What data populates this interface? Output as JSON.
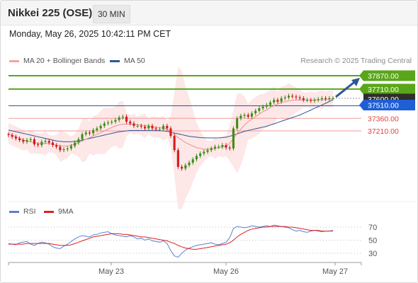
{
  "header": {
    "title": "Nikkei 225 (OSE)",
    "timeframe": "30 MIN"
  },
  "datetime": "Monday, May 26, 2025 10:42:11 PM CET",
  "credit": "Research © 2025 Trading Central",
  "legend": [
    {
      "label": "MA 20 + Bollinger Bands",
      "color": "#f4a3a3"
    },
    {
      "label": "MA 50",
      "color": "#2f5597"
    }
  ],
  "rsi_legend": [
    {
      "label": "RSI",
      "color": "#5b7fd6"
    },
    {
      "label": "9MA",
      "color": "#e02020"
    }
  ],
  "chart_data": [
    {
      "type": "candlestick",
      "x_ticks": [
        "May 23",
        "May 26",
        "May 27"
      ],
      "ylim": [
        36900,
        38000
      ],
      "levels": [
        {
          "value": 37870,
          "label": "37870.00",
          "kind": "resistance",
          "color": "#5aa61a"
        },
        {
          "value": 37710,
          "label": "37710.00",
          "kind": "resistance",
          "color": "#5aa61a"
        },
        {
          "value": 37600,
          "label": "37600.00",
          "kind": "last",
          "color": "#2a2a2a"
        },
        {
          "value": 37510,
          "label": "37510.00",
          "kind": "pivot",
          "color": "#1f5fd6"
        },
        {
          "value": 37360,
          "label": "37360.00",
          "kind": "support",
          "color": "#e04040"
        },
        {
          "value": 37210,
          "label": "37210.00",
          "kind": "support",
          "color": "#e04040"
        }
      ],
      "close": [
        37160,
        37140,
        37120,
        37100,
        37080,
        37100,
        37110,
        37050,
        37040,
        37080,
        37090,
        37070,
        37040,
        37020,
        36980,
        36990,
        37000,
        37030,
        37070,
        37110,
        37170,
        37190,
        37180,
        37220,
        37240,
        37270,
        37300,
        37310,
        37320,
        37340,
        37370,
        37380,
        37320,
        37300,
        37270,
        37270,
        37260,
        37240,
        37270,
        37240,
        37230,
        37230,
        37270,
        37240,
        37150,
        36980,
        36780,
        36760,
        36800,
        36830,
        36870,
        36910,
        36940,
        36960,
        36980,
        37000,
        37020,
        37020,
        37040,
        37010,
        37000,
        37240,
        37360,
        37390,
        37400,
        37380,
        37420,
        37450,
        37480,
        37500,
        37520,
        37550,
        37580,
        37560,
        37600,
        37610,
        37630,
        37620,
        37610,
        37600,
        37580,
        37580,
        37570,
        37580,
        37590,
        37600,
        37590,
        37600,
        37600
      ],
      "ma20": [
        37180,
        37160,
        37140,
        37120,
        37100,
        37090,
        37080,
        37070,
        37060,
        37060,
        37060,
        37060,
        37050,
        37040,
        37030,
        37030,
        37030,
        37040,
        37050,
        37070,
        37090,
        37110,
        37130,
        37150,
        37170,
        37190,
        37210,
        37230,
        37250,
        37270,
        37280,
        37290,
        37290,
        37290,
        37290,
        37280,
        37280,
        37270,
        37270,
        37260,
        37250,
        37250,
        37240,
        37230,
        37200,
        37170,
        37130,
        37100,
        37070,
        37050,
        37030,
        37010,
        37000,
        36990,
        36990,
        37000,
        37000,
        37010,
        37020,
        37030,
        37060,
        37120,
        37180,
        37230,
        37280,
        37320,
        37350,
        37380,
        37410,
        37440,
        37460,
        37490,
        37510,
        37530,
        37550,
        37560,
        37570,
        37575,
        37580,
        37580,
        37580,
        37580,
        37580,
        37580,
        37580,
        37585,
        37590,
        37590,
        37590
      ],
      "ma50": [
        37220,
        37210,
        37200,
        37190,
        37180,
        37170,
        37160,
        37150,
        37140,
        37130,
        37120,
        37110,
        37100,
        37090,
        37085,
        37080,
        37080,
        37080,
        37085,
        37090,
        37100,
        37110,
        37120,
        37130,
        37140,
        37150,
        37160,
        37170,
        37180,
        37190,
        37200,
        37205,
        37210,
        37215,
        37215,
        37215,
        37215,
        37215,
        37215,
        37215,
        37215,
        37212,
        37210,
        37205,
        37195,
        37185,
        37175,
        37165,
        37155,
        37145,
        37140,
        37135,
        37130,
        37128,
        37126,
        37125,
        37125,
        37126,
        37130,
        37135,
        37145,
        37160,
        37175,
        37190,
        37205,
        37215,
        37225,
        37235,
        37245,
        37255,
        37265,
        37280,
        37295,
        37310,
        37325,
        37340,
        37355,
        37370,
        37385,
        37400,
        37420,
        37440,
        37460,
        37480,
        37500,
        37520,
        37540,
        37560,
        37580
      ]
    },
    {
      "type": "line",
      "title": "RSI",
      "y_ticks": [
        70,
        50,
        30
      ],
      "ylim": [
        20,
        80
      ],
      "rsi": [
        45,
        44,
        43,
        46,
        47,
        48,
        44,
        42,
        45,
        47,
        46,
        44,
        40,
        38,
        37,
        41,
        44,
        48,
        52,
        55,
        57,
        56,
        55,
        58,
        59,
        61,
        62,
        63,
        60,
        58,
        57,
        56,
        55,
        57,
        55,
        52,
        53,
        50,
        52,
        49,
        48,
        47,
        49,
        45,
        34,
        26,
        24,
        30,
        35,
        38,
        40,
        42,
        43,
        44,
        45,
        46,
        44,
        43,
        45,
        47,
        54,
        68,
        71,
        70,
        69,
        70,
        72,
        71,
        70,
        71,
        72,
        71,
        73,
        72,
        71,
        70,
        69,
        66,
        64,
        65,
        63,
        62,
        64,
        65,
        64,
        63,
        64,
        64,
        65
      ],
      "ma9": [
        44,
        44,
        44,
        44,
        44,
        45,
        45,
        45,
        45,
        45,
        45,
        45,
        44,
        43,
        42,
        42,
        42,
        43,
        45,
        47,
        49,
        51,
        53,
        55,
        56,
        57,
        58,
        59,
        60,
        60,
        60,
        59,
        59,
        58,
        57,
        56,
        55,
        55,
        54,
        53,
        52,
        51,
        50,
        49,
        47,
        45,
        42,
        40,
        38,
        37,
        36,
        36,
        37,
        38,
        39,
        40,
        41,
        42,
        43,
        44,
        46,
        50,
        55,
        59,
        62,
        65,
        67,
        68,
        69,
        70,
        70,
        71,
        71,
        71,
        71,
        71,
        70,
        70,
        69,
        68,
        67,
        66,
        65,
        65,
        65,
        64,
        64,
        64,
        64
      ]
    }
  ]
}
